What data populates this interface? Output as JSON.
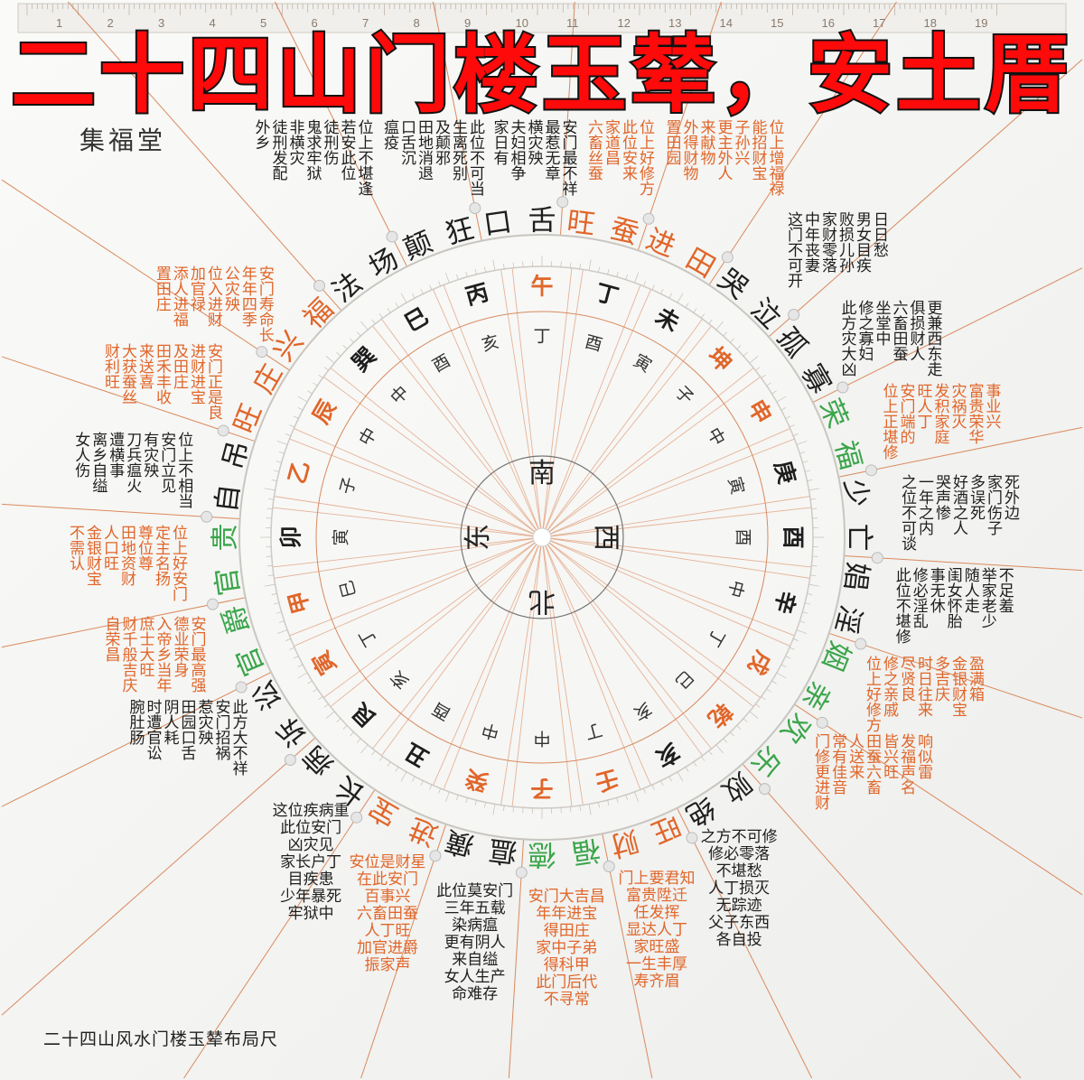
{
  "title": "二十四山门楼玉辇，安土厝",
  "brand": "集福堂",
  "caption": "二十四山风水门楼玉辇布局尺",
  "ruler_numbers": [
    "1",
    "2",
    "3",
    "4",
    "5",
    "6",
    "7",
    "8",
    "9",
    "10",
    "11",
    "12",
    "13",
    "14",
    "15",
    "16",
    "17",
    "18",
    "19"
  ],
  "colors": {
    "orange": "#e0662a",
    "green": "#3aa54a",
    "black": "#1e1e1e",
    "line": "#d98a5e",
    "title_red": "#ff0a0a"
  },
  "compass": [
    {
      "char": "南",
      "dir": "south"
    },
    {
      "char": "西",
      "dir": "west"
    },
    {
      "char": "北",
      "dir": "north"
    },
    {
      "char": "东",
      "dir": "east"
    }
  ],
  "inner_ring": [
    "丁",
    "酉",
    "寅",
    "子",
    "中",
    "寅",
    "酉",
    "中",
    "丁",
    "巳",
    "亥",
    "丁",
    "中",
    "中",
    "酉",
    "亥",
    "丁",
    "巳",
    "寅",
    "子",
    "中",
    "中",
    "酉",
    "亥"
  ],
  "mountains": [
    {
      "char": "午",
      "color": "orange"
    },
    {
      "char": "丁",
      "color": "black"
    },
    {
      "char": "未",
      "color": "black"
    },
    {
      "char": "坤",
      "color": "orange"
    },
    {
      "char": "申",
      "color": "orange"
    },
    {
      "char": "庚",
      "color": "black"
    },
    {
      "char": "酉",
      "color": "black"
    },
    {
      "char": "辛",
      "color": "black"
    },
    {
      "char": "戌",
      "color": "orange"
    },
    {
      "char": "乾",
      "color": "orange"
    },
    {
      "char": "亥",
      "color": "black"
    },
    {
      "char": "壬",
      "color": "orange"
    },
    {
      "char": "子",
      "color": "orange"
    },
    {
      "char": "癸",
      "color": "orange"
    },
    {
      "char": "丑",
      "color": "black"
    },
    {
      "char": "艮",
      "color": "black"
    },
    {
      "char": "寅",
      "color": "orange"
    },
    {
      "char": "甲",
      "color": "orange"
    },
    {
      "char": "卯",
      "color": "black"
    },
    {
      "char": "乙",
      "color": "orange"
    },
    {
      "char": "辰",
      "color": "orange"
    },
    {
      "char": "巽",
      "color": "black"
    },
    {
      "char": "巳",
      "color": "black"
    },
    {
      "char": "丙",
      "color": "black"
    }
  ],
  "sectors": [
    {
      "name": "口舌",
      "color": "black",
      "text_color": "black",
      "lines": [
        "安门最不祥",
        "最惹无章",
        "横灾殃",
        "夫妇相争",
        "家日有"
      ]
    },
    {
      "name": "旺蚕",
      "color": "orange",
      "text_color": "orange",
      "lines": [
        "位上好修方",
        "此位安来",
        "家道昌",
        "六畜丝蚕"
      ]
    },
    {
      "name": "进田",
      "color": "orange",
      "text_color": "orange",
      "lines": [
        "位上增福禄",
        "能招财宝",
        "子孙兴",
        "更主外人",
        "来献物",
        "外得财物",
        "置田园"
      ]
    },
    {
      "name": "哭泣",
      "color": "black",
      "text_color": "black",
      "lines": [
        "这门不可开",
        "中年丧妻",
        "家财零落",
        "败损儿孙",
        "男女目疾",
        "日日愁"
      ]
    },
    {
      "name": "孤寡",
      "color": "black",
      "text_color": "black",
      "lines": [
        "此方灾大凶",
        "修之寡妇",
        "坐堂中",
        "六畜田蚕",
        "俱损财人",
        "更兼西东走"
      ]
    },
    {
      "name": "荣福",
      "color": "green",
      "text_color": "orange",
      "lines": [
        "位上正堪修",
        "安门端的",
        "旺人丁",
        "发积家庭",
        "灾祸灭",
        "富贵荣华",
        "事业兴"
      ]
    },
    {
      "name": "少亡",
      "color": "black",
      "text_color": "black",
      "lines": [
        "之位不可谈",
        "一年之内",
        "哭声惨",
        "好酒之人",
        "多误死",
        "家门伤子",
        "死外边"
      ]
    },
    {
      "name": "娼淫",
      "color": "black",
      "text_color": "black",
      "lines": [
        "此位不堪修",
        "修必淫乱",
        "事无休",
        "闺女怀胎",
        "随人走",
        "举家老少",
        "不足羞"
      ]
    },
    {
      "name": "姻亲",
      "color": "green",
      "text_color": "orange",
      "lines": [
        "位上好修方",
        "修之亲戚",
        "尽贤良",
        "时日往来",
        "多吉庆",
        "金银财宝",
        "盈满箱"
      ]
    },
    {
      "name": "欢乐",
      "color": "green",
      "text_color": "orange",
      "lines": [
        "门修更进财",
        "常有佳音",
        "人送来",
        "田蚕六畜",
        "皆兴旺",
        "发福声名",
        "响似雷"
      ]
    },
    {
      "name": "败绝",
      "color": "black",
      "text_color": "black",
      "lines": [
        "之方不可修",
        "修必零落",
        "不堪愁",
        "人丁损灭",
        "无踪迹",
        "父子东西",
        "各自投"
      ]
    },
    {
      "name": "旺财",
      "color": "orange",
      "text_color": "orange",
      "lines": [
        "门上要君知",
        "富贵陞迁",
        "任发挥",
        "显达人丁",
        "家旺盛",
        "一生丰厚",
        "寿齐眉"
      ]
    },
    {
      "name": "福德",
      "color": "green",
      "text_color": "orange",
      "lines": [
        "安门大吉昌",
        "年年进宝",
        "得田庄",
        "家中子弟",
        "得科甲",
        "此门后代",
        "不寻常"
      ]
    },
    {
      "name": "瘟癀",
      "color": "black",
      "text_color": "black",
      "lines": [
        "此位莫安门",
        "三年五载",
        "染病瘟",
        "更有阴人",
        "来自缢",
        "女人生产",
        "命难存"
      ]
    },
    {
      "name": "进宝",
      "color": "orange",
      "text_color": "orange",
      "lines": [
        "安位是财星",
        "在此安门",
        "百事兴",
        "六畜田蚕",
        "人丁旺",
        "加官进爵",
        "振家声"
      ]
    },
    {
      "name": "长病",
      "color": "black",
      "text_color": "black",
      "lines": [
        "这位疾病重",
        "此位安门",
        "凶灾见",
        "家长户丁",
        "目疾患",
        "少年暴死",
        "牢狱中"
      ]
    },
    {
      "name": "诉讼",
      "color": "black",
      "text_color": "black",
      "lines": [
        "此方大不祥",
        "安门招祸",
        "惹灾殃",
        "田园口舌",
        "阴人耗",
        "时遭官讼",
        "腕肚肠"
      ]
    },
    {
      "name": "官爵",
      "color": "green",
      "text_color": "orange",
      "lines": [
        "安门最高强",
        "德业荣身",
        "入帝乡当年",
        "庶士大旺",
        "财千般吉庆",
        "自荣昌"
      ]
    },
    {
      "name": "官贵",
      "color": "green",
      "text_color": "orange",
      "lines": [
        "位上好安门",
        "定主名扬",
        "尊位尊",
        "田地资财",
        "人口旺",
        "金银财宝",
        "不需认"
      ]
    },
    {
      "name": "自吊",
      "color": "black",
      "text_color": "black",
      "lines": [
        "位上不相当",
        "安门立见",
        "有灾殃",
        "刀兵瘟火",
        "遭横事",
        "离乡自缢",
        "女人伤"
      ]
    },
    {
      "name": "旺庄",
      "color": "orange",
      "text_color": "orange",
      "lines": [
        "安门正是良",
        "进财进宝",
        "及田庄",
        "田禾丰收",
        "来送喜",
        "大获蚕丝",
        "财利旺"
      ]
    },
    {
      "name": "兴福",
      "color": "orange",
      "text_color": "orange",
      "lines": [
        "安门寿命长",
        "年年四季",
        "公灾殃",
        "位入进财",
        "加官禄",
        "添人进福",
        "置田庄"
      ]
    },
    {
      "name": "法场",
      "color": "black",
      "text_color": "black",
      "lines": [
        "位上不堪逢",
        "若安此位",
        "徒刑伤",
        "鬼求牢狱",
        "非横灾",
        "徒刑发配",
        "外乡"
      ]
    },
    {
      "name": "颠狂",
      "color": "black",
      "text_color": "black",
      "lines": [
        "此位不可当",
        "生离死别",
        "及颠邪",
        "田地消退",
        "口舌沉",
        "瘟疫"
      ]
    }
  ]
}
